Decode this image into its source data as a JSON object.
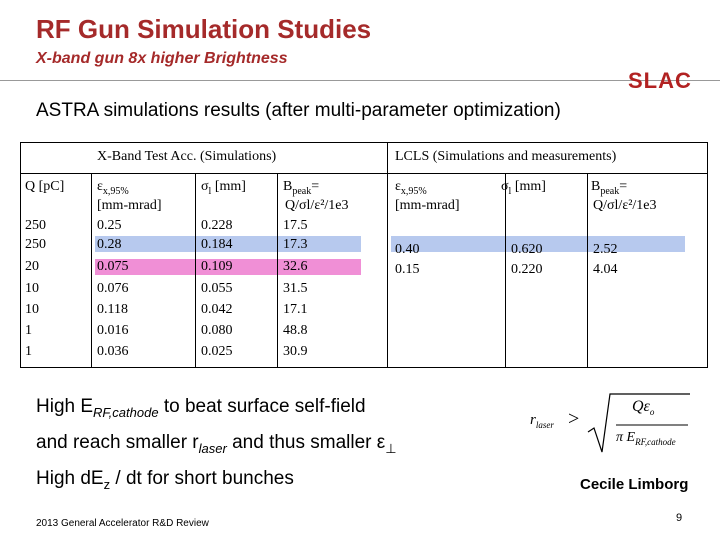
{
  "header": {
    "title": "RF Gun Simulation Studies",
    "subtitle": "X-band gun 8x higher Brightness",
    "logo": "SLAC"
  },
  "headline": "ASTRA simulations results (after multi-parameter optimization)",
  "table": {
    "group_xband": "X-Band Test Acc. (Simulations)",
    "group_lcls": "LCLS  (Simulations and measurements)",
    "col_q": "Q [pC]",
    "col_eps_sym": "ε",
    "col_eps_sub": "x,95%",
    "col_eps_unit": "[mm-mrad]",
    "col_sigma_sym": "σ",
    "col_sigma_sub": "l",
    "col_sigma_unit": " [mm]",
    "col_b_main": "B",
    "col_b_sub": "peak",
    "col_b_eq": "=",
    "col_b_formula": "Q/σl/ε²/1e3",
    "xband_rows": [
      {
        "q": "250",
        "eps": "0.25",
        "sigma": "0.228",
        "bpeak": "17.5"
      },
      {
        "q": "250",
        "eps": "0.28",
        "sigma": "0.184",
        "bpeak": "17.3"
      },
      {
        "q": "20",
        "eps": "0.075",
        "sigma": "0.109",
        "bpeak": "32.6"
      },
      {
        "q": "10",
        "eps": "0.076",
        "sigma": "0.055",
        "bpeak": "31.5"
      },
      {
        "q": "10",
        "eps": "0.118",
        "sigma": "0.042",
        "bpeak": "17.1"
      },
      {
        "q": "1",
        "eps": "0.016",
        "sigma": "0.080",
        "bpeak": "48.8"
      },
      {
        "q": "1",
        "eps": "0.036",
        "sigma": "0.025",
        "bpeak": "30.9"
      }
    ],
    "lcls_rows": [
      {
        "eps": "0.40",
        "sigma": "0.620",
        "bpeak": "2.52"
      },
      {
        "eps": "0.15",
        "sigma": "0.220",
        "bpeak": "4.04"
      }
    ],
    "highlight_colors": {
      "blue": "#b7c9ee",
      "pink": "#f08fd6"
    }
  },
  "bullets": {
    "line1_a": "High E",
    "line1_sub": "RF,cathode",
    "line1_b": " to beat surface self-field",
    "line2_a": "and reach smaller r",
    "line2_sub": "laser",
    "line2_b": " and thus smaller ε",
    "line2_sub2": "⊥",
    "line3_a": "High dE",
    "line3_sub": "z",
    "line3_b": " / dt for short bunches"
  },
  "formula": {
    "lhs": "r",
    "lhs_sub": "laser",
    "op": ">",
    "numerator": "Qε",
    "numerator_sub": "o",
    "denominator": "π E",
    "denominator_sub": "RF,cathode"
  },
  "author": "Cecile Limborg",
  "footer": "2013 General Accelerator R&D Review",
  "page_number": "9"
}
